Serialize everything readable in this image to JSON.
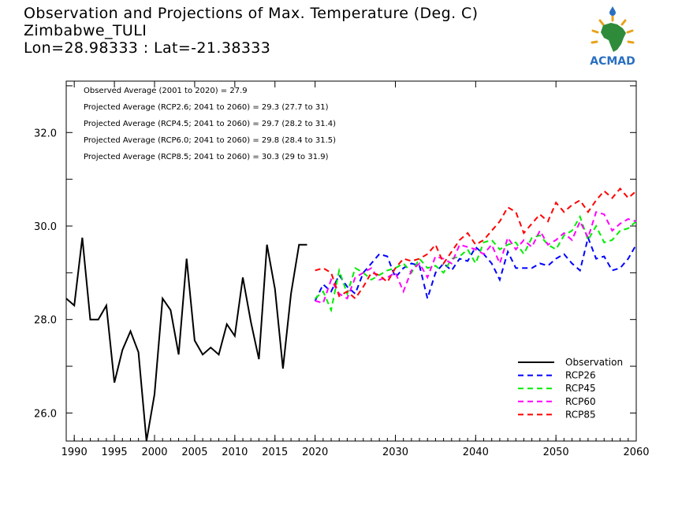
{
  "title": {
    "line1": "Observation and Projections of Max. Temperature (Deg. C)",
    "line2": "Zimbabwe_TULI",
    "line3": "Lon=28.98333 : Lat=-21.38333"
  },
  "logo": {
    "text": "ACMAD",
    "colors": {
      "africa": "#2e8b3a",
      "sun": "#e8a21a",
      "drop": "#2a6fc0",
      "text": "#2a6fc0"
    }
  },
  "chart_data": {
    "type": "line",
    "xlim": [
      1989,
      2060
    ],
    "ylim": [
      25.4,
      33.1
    ],
    "x_ticks": [
      1990,
      1995,
      2000,
      2005,
      2010,
      2015,
      2020,
      2030,
      2040,
      2050,
      2060
    ],
    "y_ticks": [
      26.0,
      28.0,
      30.0,
      32.0
    ],
    "y_tick_labels": [
      "26.0",
      "28.0",
      "30.0",
      "32.0"
    ],
    "annotations": [
      "Observed Average (2001 to 2020) = 27.9",
      "Projected Average (RCP2.6; 2041 to 2060) = 29.3 (27.7 to 31)",
      "Projected Average (RCP4.5; 2041 to 2060) = 29.7 (28.2 to 31.4)",
      "Projected Average (RCP6.0; 2041 to 2060) = 29.8 (28.4 to 31.5)",
      "Projected Average (RCP8.5; 2041 to 2060) = 30.3 (29 to 31.9)"
    ],
    "legend_position": "bottom-right",
    "series": [
      {
        "name": "Observation",
        "color": "#000000",
        "style": "solid",
        "x": [
          1989,
          1990,
          1991,
          1992,
          1993,
          1994,
          1995,
          1996,
          1997,
          1998,
          1999,
          2000,
          2001,
          2002,
          2003,
          2004,
          2005,
          2006,
          2007,
          2008,
          2009,
          2010,
          2011,
          2012,
          2013,
          2014,
          2015,
          2016,
          2017,
          2018,
          2019
        ],
        "y": [
          28.45,
          28.3,
          29.75,
          28.0,
          28.0,
          28.3,
          26.65,
          27.35,
          27.75,
          27.3,
          25.4,
          26.4,
          28.45,
          28.2,
          27.25,
          29.3,
          27.55,
          27.25,
          27.4,
          27.25,
          27.9,
          27.65,
          28.9,
          27.95,
          27.15,
          29.6,
          28.65,
          26.95,
          28.55,
          29.6,
          29.6
        ]
      },
      {
        "name": "RCP26",
        "color": "#0000ff",
        "style": "dashed",
        "x": [
          2020,
          2021,
          2022,
          2023,
          2024,
          2025,
          2026,
          2027,
          2028,
          2029,
          2030,
          2031,
          2032,
          2033,
          2034,
          2035,
          2036,
          2037,
          2038,
          2039,
          2040,
          2041,
          2042,
          2043,
          2044,
          2045,
          2046,
          2047,
          2048,
          2049,
          2050,
          2051,
          2052,
          2053,
          2054,
          2055,
          2056,
          2057,
          2058,
          2059,
          2060
        ],
        "y": [
          28.4,
          28.75,
          28.6,
          28.95,
          28.7,
          28.55,
          29.0,
          29.2,
          29.4,
          29.35,
          28.9,
          29.1,
          29.2,
          29.15,
          28.45,
          29.0,
          29.2,
          29.05,
          29.3,
          29.25,
          29.55,
          29.4,
          29.2,
          28.85,
          29.45,
          29.1,
          29.1,
          29.1,
          29.2,
          29.15,
          29.3,
          29.4,
          29.2,
          29.05,
          29.75,
          29.3,
          29.35,
          29.05,
          29.1,
          29.3,
          29.6
        ]
      },
      {
        "name": "RCP45",
        "color": "#00ee00",
        "style": "dashed",
        "x": [
          2020,
          2021,
          2022,
          2023,
          2024,
          2025,
          2026,
          2027,
          2028,
          2029,
          2030,
          2031,
          2032,
          2033,
          2034,
          2035,
          2036,
          2037,
          2038,
          2039,
          2040,
          2041,
          2042,
          2043,
          2044,
          2045,
          2046,
          2047,
          2048,
          2049,
          2050,
          2051,
          2052,
          2053,
          2054,
          2055,
          2056,
          2057,
          2058,
          2059,
          2060
        ],
        "y": [
          28.45,
          28.6,
          28.2,
          29.05,
          28.55,
          29.1,
          29.0,
          28.85,
          28.95,
          29.05,
          29.1,
          29.2,
          29.0,
          29.3,
          29.1,
          29.15,
          29.0,
          29.3,
          29.35,
          29.5,
          29.2,
          29.65,
          29.7,
          29.5,
          29.6,
          29.65,
          29.4,
          29.75,
          29.8,
          29.6,
          29.5,
          29.8,
          29.9,
          30.2,
          29.7,
          30.0,
          29.65,
          29.7,
          29.9,
          29.95,
          30.1
        ]
      },
      {
        "name": "RCP60",
        "color": "#ff00ff",
        "style": "dashed",
        "x": [
          2020,
          2021,
          2022,
          2023,
          2024,
          2025,
          2026,
          2027,
          2028,
          2029,
          2030,
          2031,
          2032,
          2033,
          2034,
          2035,
          2036,
          2037,
          2038,
          2039,
          2040,
          2041,
          2042,
          2043,
          2044,
          2045,
          2046,
          2047,
          2048,
          2049,
          2050,
          2051,
          2052,
          2053,
          2054,
          2055,
          2056,
          2057,
          2058,
          2059,
          2060
        ],
        "y": [
          28.4,
          28.35,
          28.85,
          28.55,
          28.45,
          28.9,
          29.0,
          29.1,
          28.85,
          28.9,
          29.0,
          28.6,
          29.05,
          29.2,
          28.9,
          29.35,
          29.3,
          29.2,
          29.6,
          29.55,
          29.5,
          29.4,
          29.6,
          29.2,
          29.75,
          29.5,
          29.7,
          29.55,
          29.9,
          29.6,
          29.7,
          29.85,
          29.7,
          30.1,
          29.75,
          30.3,
          30.25,
          29.9,
          30.05,
          30.15,
          30.1
        ]
      },
      {
        "name": "RCP85",
        "color": "#ff0000",
        "style": "dashed",
        "x": [
          2020,
          2021,
          2022,
          2023,
          2024,
          2025,
          2026,
          2027,
          2028,
          2029,
          2030,
          2031,
          2032,
          2033,
          2034,
          2035,
          2036,
          2037,
          2038,
          2039,
          2040,
          2041,
          2042,
          2043,
          2044,
          2045,
          2046,
          2047,
          2048,
          2049,
          2050,
          2051,
          2052,
          2053,
          2054,
          2055,
          2056,
          2057,
          2058,
          2059,
          2060
        ],
        "y": [
          29.05,
          29.1,
          29.0,
          28.5,
          28.6,
          28.45,
          28.7,
          29.0,
          28.95,
          28.8,
          29.1,
          29.3,
          29.25,
          29.3,
          29.4,
          29.6,
          29.2,
          29.45,
          29.7,
          29.85,
          29.6,
          29.7,
          29.9,
          30.1,
          30.4,
          30.3,
          29.85,
          30.05,
          30.25,
          30.1,
          30.5,
          30.3,
          30.45,
          30.55,
          30.3,
          30.55,
          30.75,
          30.6,
          30.8,
          30.6,
          30.75
        ]
      }
    ]
  }
}
